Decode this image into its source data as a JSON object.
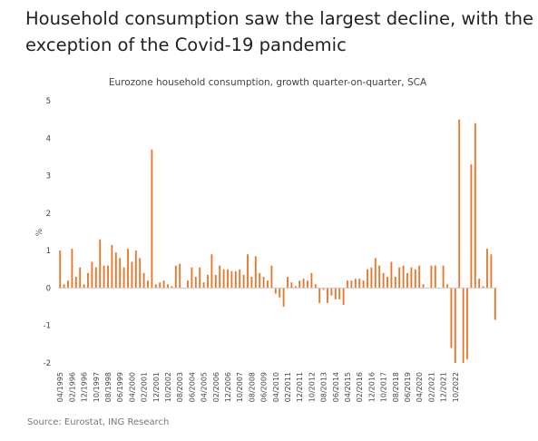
{
  "headline": "Household consumption saw the largest decline, with the exception of the Covid-19 pandemic",
  "source": "Source: Eurostat, ING Research",
  "colors": {
    "bar": "#e8762b",
    "text": "#444444",
    "axis": "#cccccc"
  },
  "chart_data": {
    "type": "bar",
    "title": "Eurozone household consumption, growth quarter-on-quarter, SCA",
    "ylabel": "%",
    "xlabel": "",
    "ylim": [
      -2,
      5
    ],
    "yticks": [
      5,
      4,
      3,
      2,
      1,
      0,
      -1,
      -2
    ],
    "grid": false,
    "start": {
      "year": 1995,
      "quarter": 2
    },
    "tick_labels": [
      "04/1995",
      "02/1996",
      "12/1996",
      "10/1997",
      "08/1998",
      "06/1999",
      "04/2000",
      "02/2001",
      "12/2001",
      "10/2002",
      "08/2003",
      "06/2004",
      "04/2005",
      "02/2006",
      "12/2006",
      "10/2007",
      "08/2008",
      "06/2009",
      "04/2010",
      "02/2011",
      "12/2011",
      "10/2012",
      "08/2013",
      "06/2014",
      "04/2015",
      "02/2016",
      "12/2016",
      "10/2017",
      "08/2018",
      "06/2019",
      "04/2020",
      "02/2021",
      "12/2021",
      "10/2022"
    ],
    "values": [
      1.0,
      0.1,
      0.2,
      1.05,
      0.3,
      0.55,
      0.1,
      0.4,
      0.7,
      0.55,
      1.3,
      0.6,
      0.6,
      1.15,
      0.95,
      0.8,
      0.55,
      1.05,
      0.7,
      1.0,
      0.8,
      0.4,
      0.2,
      3.7,
      0.1,
      0.15,
      0.2,
      0.1,
      0.05,
      0.6,
      0.65,
      0.0,
      0.2,
      0.55,
      0.3,
      0.55,
      0.15,
      0.35,
      0.9,
      0.35,
      0.6,
      0.5,
      0.5,
      0.45,
      0.45,
      0.5,
      0.35,
      0.9,
      0.3,
      0.85,
      0.4,
      0.3,
      0.2,
      0.6,
      -0.15,
      -0.25,
      -0.5,
      0.3,
      0.15,
      0.05,
      0.2,
      0.25,
      0.2,
      0.4,
      0.1,
      -0.4,
      -0.05,
      -0.4,
      -0.2,
      -0.3,
      -0.3,
      -0.45,
      0.2,
      0.2,
      0.25,
      0.25,
      0.2,
      0.5,
      0.55,
      0.8,
      0.6,
      0.4,
      0.3,
      0.7,
      0.3,
      0.55,
      0.6,
      0.4,
      0.55,
      0.5,
      0.6,
      0.1,
      0.0,
      0.6,
      0.6,
      0.0,
      0.6,
      0.1,
      -1.6,
      -2.0,
      4.5,
      -2.0,
      -1.9,
      3.3,
      4.4,
      0.25,
      0.05,
      1.05,
      0.9,
      -0.85
    ]
  }
}
